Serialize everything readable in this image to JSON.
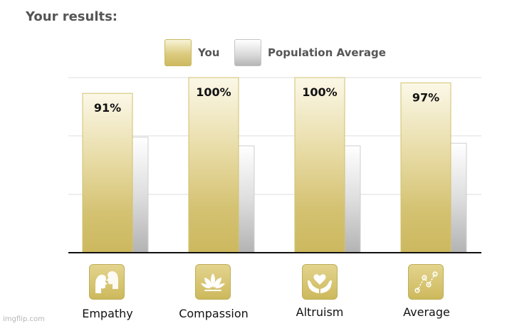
{
  "title": "Your results:",
  "legend": [
    {
      "name": "You",
      "style": "gold"
    },
    {
      "name": "Population Average",
      "style": "silver"
    }
  ],
  "icons": [
    "empathy-faces-icon",
    "lotus-icon",
    "heart-hands-icon",
    "average-graph-icon"
  ],
  "colors": {
    "you_top": "#f8f3d8",
    "you_bottom": "#cdb95f",
    "you_border": "#c9b862",
    "pop_top": "#ffffff",
    "pop_bottom": "#b5b5b5",
    "pop_border": "#c4c4c4",
    "grid": "#dddddd",
    "axis": "#111111"
  },
  "watermark": "imgflip.com",
  "chart_data": {
    "type": "bar",
    "categories": [
      "Empathy",
      "Compassion",
      "Altruism",
      "Average"
    ],
    "series": [
      {
        "name": "You",
        "values": [
          91,
          100,
          100,
          97
        ],
        "labels": [
          "91%",
          "100%",
          "100%",
          "97%"
        ]
      },
      {
        "name": "Population Average",
        "values": [
          66,
          61,
          61,
          62.5
        ]
      }
    ],
    "ylim": [
      0,
      100
    ],
    "grid": true,
    "legend_position": "top-center",
    "y_tick_labels": false
  }
}
